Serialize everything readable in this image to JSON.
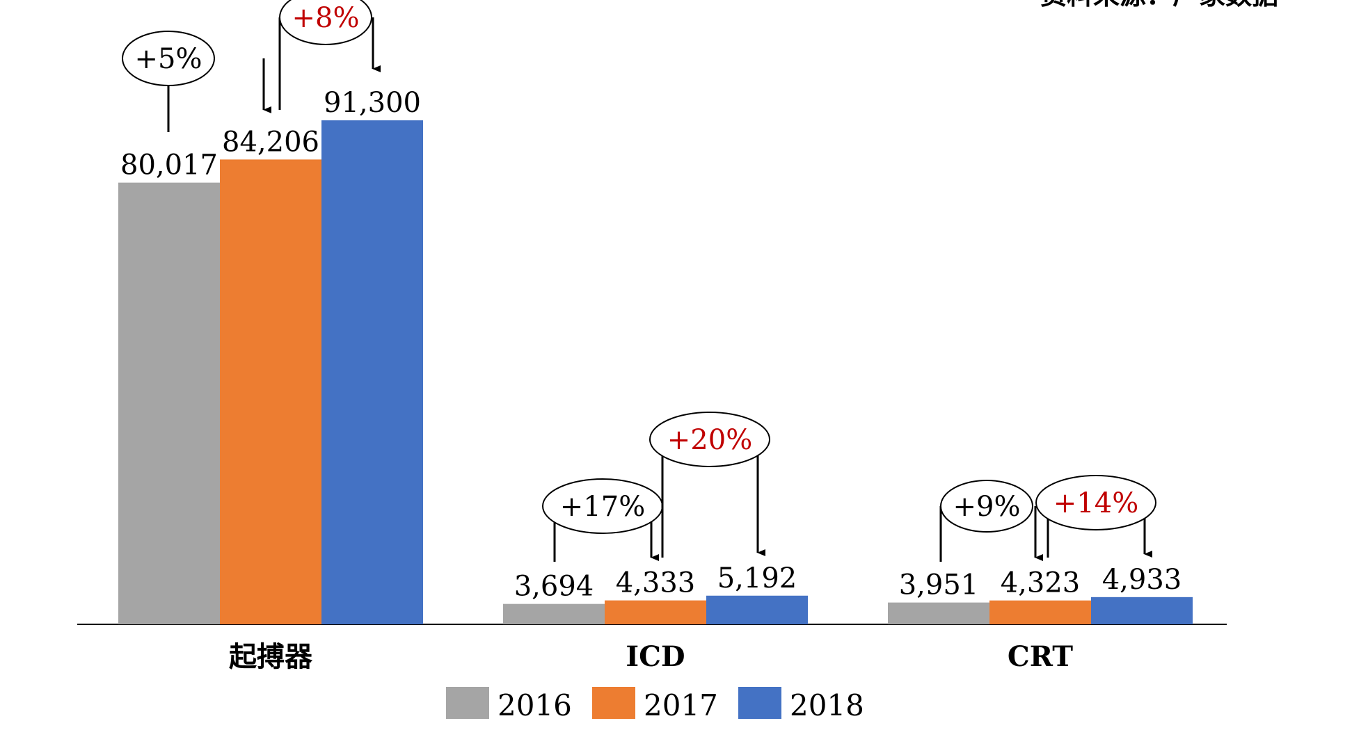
{
  "top_right_note": "资料来源：厂家数据",
  "chart_data": {
    "type": "bar",
    "categories": [
      "起搏器",
      "ICD",
      "CRT"
    ],
    "series": [
      {
        "name": "2016",
        "color": "#a5a5a5",
        "values": [
          80017,
          3694,
          3951
        ]
      },
      {
        "name": "2017",
        "color": "#ed7d31",
        "values": [
          84206,
          4333,
          4323
        ]
      },
      {
        "name": "2018",
        "color": "#4472c4",
        "values": [
          91300,
          5192,
          4933
        ]
      }
    ],
    "data_labels": [
      [
        "80,017",
        "3,694",
        "3,951"
      ],
      [
        "84,206",
        "4,333",
        "4,323"
      ],
      [
        "91,300",
        "5,192",
        "4,933"
      ]
    ],
    "growth_annotations": [
      {
        "category": 0,
        "from": "2016",
        "to": "2017",
        "label": "+5%",
        "color": "#000000"
      },
      {
        "category": 0,
        "from": "2017",
        "to": "2018",
        "label": "+8%",
        "color": "#c00000"
      },
      {
        "category": 1,
        "from": "2016",
        "to": "2017",
        "label": "+17%",
        "color": "#000000"
      },
      {
        "category": 1,
        "from": "2017",
        "to": "2018",
        "label": "+20%",
        "color": "#c00000"
      },
      {
        "category": 2,
        "from": "2016",
        "to": "2017",
        "label": "+9%",
        "color": "#000000"
      },
      {
        "category": 2,
        "from": "2017",
        "to": "2018",
        "label": "+14%",
        "color": "#c00000"
      }
    ],
    "legend": {
      "position": "bottom-center",
      "entries": [
        "2016",
        "2017",
        "2018"
      ]
    },
    "ylim": [
      0,
      100000
    ],
    "grid": false
  }
}
